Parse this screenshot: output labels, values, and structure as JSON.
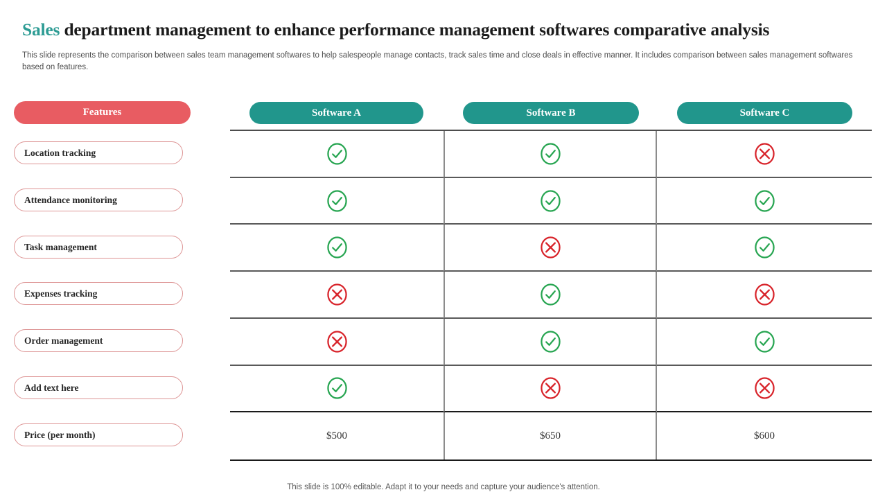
{
  "slide": {
    "title": {
      "accent": "Sales",
      "rest": "department management to enhance performance management softwares comparative analysis"
    },
    "subtitle": "This slide represents the comparison between sales team management softwares to help salespeople manage contacts, track sales time and close deals in effective manner. It includes comparison between sales management softwares based on features.",
    "footer": "This slide is 100% editable. Adapt it to your needs and capture your audience's attention."
  },
  "features": {
    "header": "Features",
    "items": [
      "Location tracking",
      "Attendance monitoring",
      "Task management",
      "Expenses tracking",
      "Order management",
      "Add text here",
      "Price (per month)"
    ]
  },
  "table": {
    "columns": [
      "Software A",
      "Software B",
      "Software C"
    ],
    "rows": [
      {
        "feature": "Location tracking",
        "values": [
          "yes",
          "yes",
          "no"
        ]
      },
      {
        "feature": "Attendance monitoring",
        "values": [
          "yes",
          "yes",
          "yes"
        ]
      },
      {
        "feature": "Task management",
        "values": [
          "yes",
          "no",
          "yes"
        ]
      },
      {
        "feature": "Expenses tracking",
        "values": [
          "no",
          "yes",
          "no"
        ]
      },
      {
        "feature": "Order management",
        "values": [
          "no",
          "yes",
          "yes"
        ]
      },
      {
        "feature": "Add text here",
        "values": [
          "yes",
          "no",
          "no"
        ]
      },
      {
        "feature": "Price (per month)",
        "values": [
          "$500",
          "$650",
          "$600"
        ]
      }
    ]
  },
  "icons": {
    "yes": "check-circle-icon",
    "no": "cross-circle-icon"
  },
  "colors": {
    "accent_teal": "#21968c",
    "accent_coral": "#e85c62",
    "title_accent": "#2d9c94",
    "check_green": "#27a551",
    "cross_red": "#d8232a",
    "grid_line": "#595959"
  }
}
